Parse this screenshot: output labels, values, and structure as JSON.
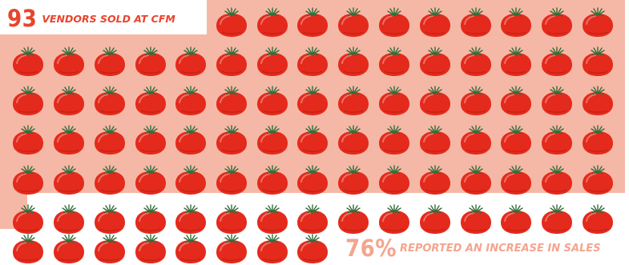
{
  "headline": {
    "number": "93",
    "text": "VENDORS SOLD AT CFM"
  },
  "stat": {
    "number": "76",
    "unit": "%",
    "text": "REPORTED AN INCREASE IN SALES"
  },
  "icon": "tomato-icon",
  "colors": {
    "panel": "#f6b8a6",
    "headline": "#e8452c",
    "stat": "#f4a58e",
    "tomato": "#e42a1c",
    "stem": "#2f6e3a"
  }
}
